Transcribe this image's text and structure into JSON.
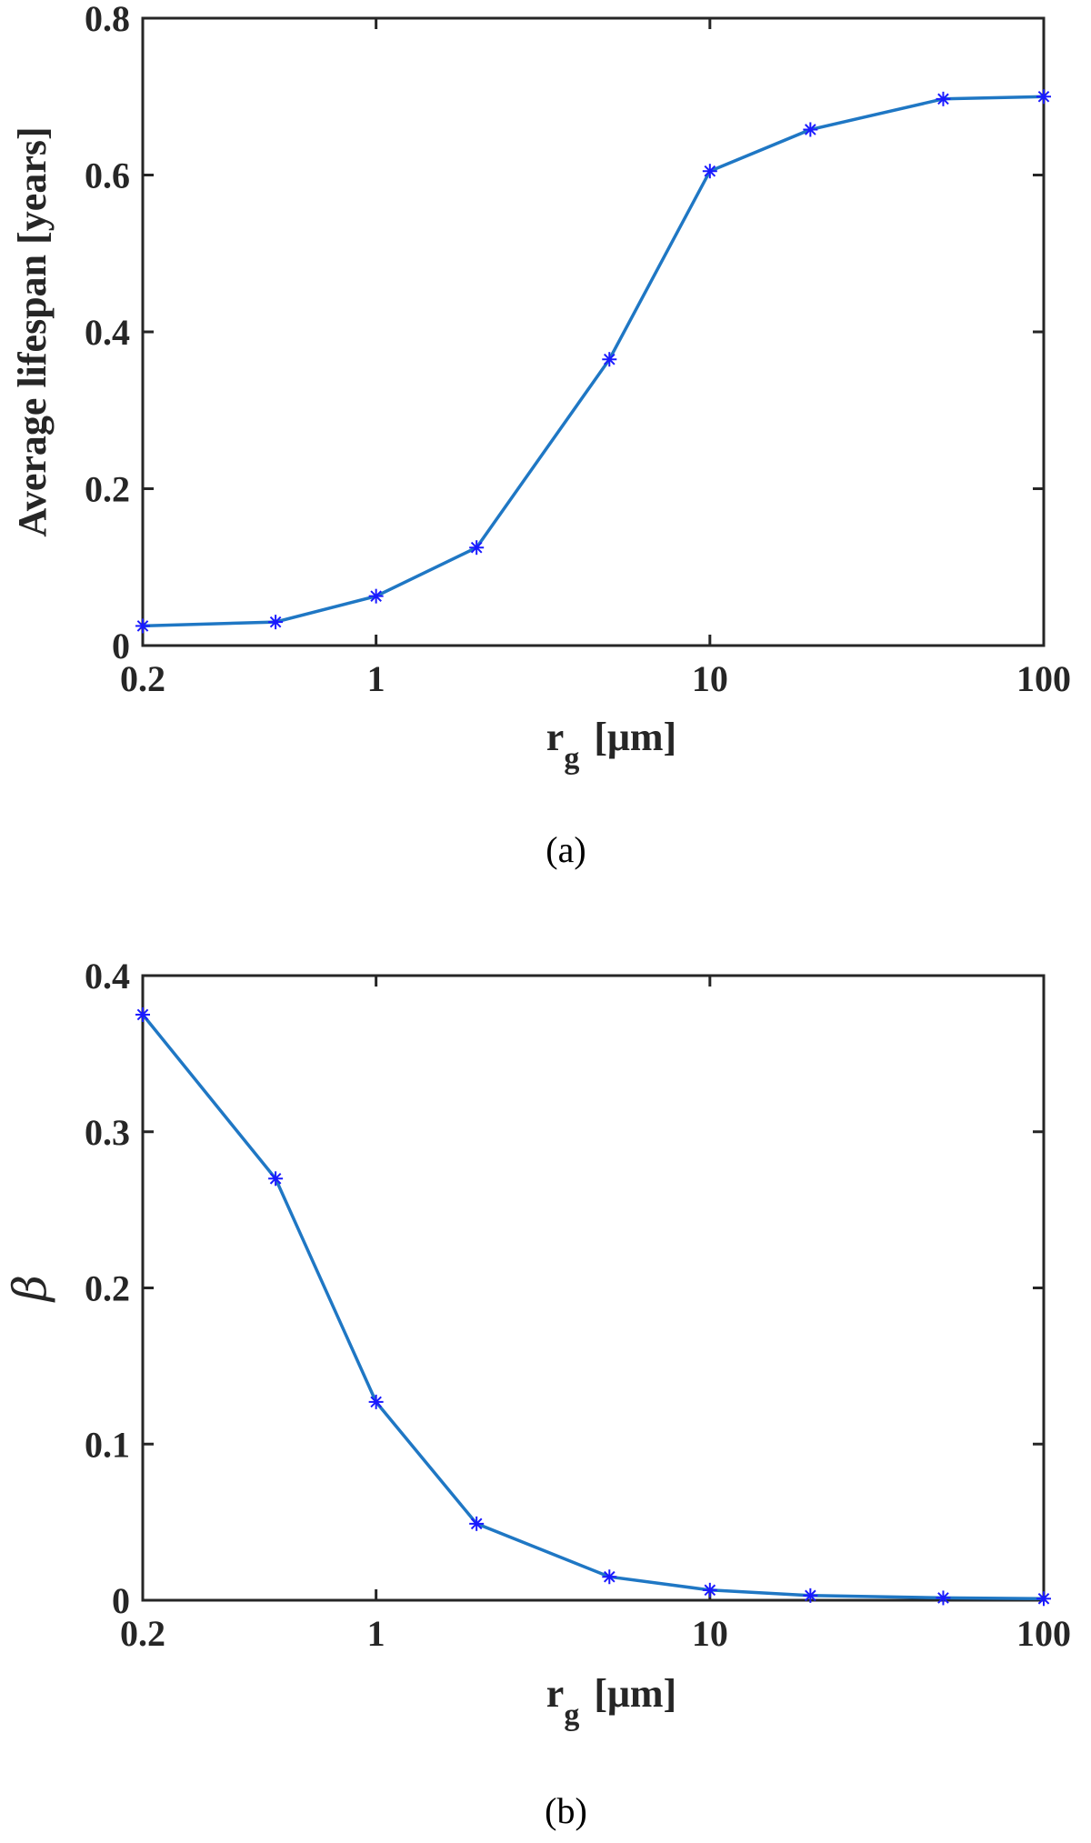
{
  "chart_data": [
    {
      "type": "line",
      "panel_label": "(a)",
      "xscale": "log",
      "xlim": [
        0.2,
        100
      ],
      "ylim": [
        0,
        0.8
      ],
      "xticks": [
        0.2,
        1,
        10,
        100
      ],
      "xtick_labels": [
        "0.2",
        "1",
        "10",
        "100"
      ],
      "yticks": [
        0,
        0.2,
        0.4,
        0.6,
        0.8
      ],
      "ytick_labels": [
        "0",
        "0.2",
        "0.4",
        "0.6",
        "0.8"
      ],
      "xlabel_main": "r",
      "xlabel_sub": "g",
      "xlabel_unit": "[μm]",
      "ylabel": "Average lifespan [years]",
      "grid": false,
      "series": [
        {
          "x": [
            0.2,
            0.5,
            1,
            2,
            5,
            10,
            20,
            50,
            100
          ],
          "y": [
            0.025,
            0.03,
            0.063,
            0.125,
            0.365,
            0.605,
            0.658,
            0.697,
            0.7
          ],
          "line_color": "#1f77c4",
          "marker": "asterisk",
          "marker_color": "#1a1aff"
        }
      ]
    },
    {
      "type": "line",
      "panel_label": "(b)",
      "xscale": "log",
      "xlim": [
        0.2,
        100
      ],
      "ylim": [
        0,
        0.4
      ],
      "xticks": [
        0.2,
        1,
        10,
        100
      ],
      "xtick_labels": [
        "0.2",
        "1",
        "10",
        "100"
      ],
      "yticks": [
        0,
        0.1,
        0.2,
        0.3,
        0.4
      ],
      "ytick_labels": [
        "0",
        "0.1",
        "0.2",
        "0.3",
        "0.4"
      ],
      "xlabel_main": "r",
      "xlabel_sub": "g",
      "xlabel_unit": "[μm]",
      "ylabel": "β",
      "grid": false,
      "series": [
        {
          "x": [
            0.2,
            0.5,
            1,
            2,
            5,
            10,
            20,
            50,
            100
          ],
          "y": [
            0.375,
            0.27,
            0.127,
            0.049,
            0.015,
            0.0065,
            0.003,
            0.0015,
            0.001
          ],
          "line_color": "#1f77c4",
          "marker": "asterisk",
          "marker_color": "#1a1aff"
        }
      ]
    }
  ]
}
